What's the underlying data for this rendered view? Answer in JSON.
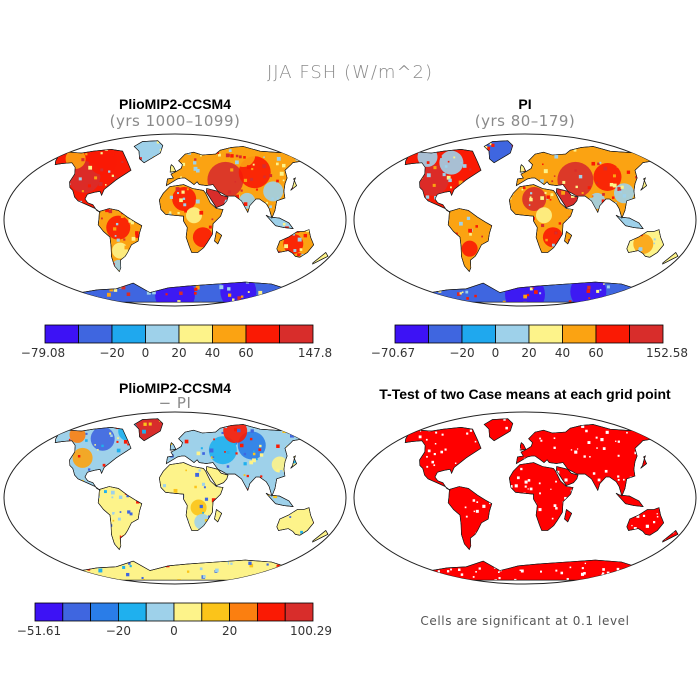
{
  "title": "JJA FSH (W/m^2)",
  "panels": [
    {
      "title": "PlioMIP2-CCSM4",
      "subtitle": "(yrs 1000–1099)",
      "colorbar": {
        "colors": [
          "#3d12f5",
          "#3f66e0",
          "#1fa8ee",
          "#9ed1ea",
          "#fdf38a",
          "#fba312",
          "#fa1a04",
          "#d82d2b"
        ],
        "min_label": "−79.08",
        "ticks": [
          "−20",
          "0",
          "20",
          "40",
          "60"
        ],
        "max_label": "147.8"
      }
    },
    {
      "title": "PI",
      "subtitle": "(yrs 80–179)",
      "colorbar": {
        "colors": [
          "#3d12f5",
          "#3f66e0",
          "#1fa8ee",
          "#9ed1ea",
          "#fdf38a",
          "#fba312",
          "#fa1a04",
          "#d82d2b"
        ],
        "min_label": "−70.67",
        "ticks": [
          "−20",
          "0",
          "20",
          "40",
          "60"
        ],
        "max_label": "152.58"
      }
    },
    {
      "title": "PlioMIP2-CCSM4",
      "subtitle": "− PI",
      "colorbar": {
        "colors": [
          "#3d12f5",
          "#3f66e0",
          "#2a7de8",
          "#1fb0ee",
          "#9ed1ea",
          "#fdf38a",
          "#fbc41a",
          "#fb7f10",
          "#fa1a04",
          "#d82d2b"
        ],
        "min_label": "−51.61",
        "ticks": [
          "−20",
          "0",
          "20"
        ],
        "max_label": "100.29"
      }
    },
    {
      "title": "T-Test of two Case means at each grid point",
      "subtitle": "",
      "footnote": "Cells are significant at 0.1 level"
    }
  ],
  "colors": {
    "land_outline": "#1a1a1a",
    "ocean": "#ffffff",
    "significant": "#ff0000"
  }
}
